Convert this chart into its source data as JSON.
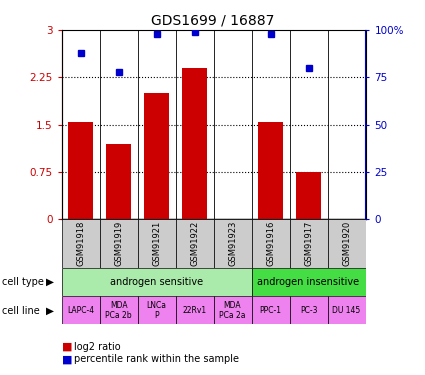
{
  "title": "GDS1699 / 16887",
  "samples": [
    "GSM91918",
    "GSM91919",
    "GSM91921",
    "GSM91922",
    "GSM91923",
    "GSM91916",
    "GSM91917",
    "GSM91920"
  ],
  "log2_ratio": [
    1.55,
    1.2,
    2.0,
    2.4,
    0.0,
    1.55,
    0.75,
    0.0
  ],
  "percentile_rank": [
    88,
    78,
    98,
    99,
    0,
    98,
    80,
    0
  ],
  "ylim_left": [
    0,
    3
  ],
  "ylim_right": [
    0,
    100
  ],
  "yticks_left": [
    0,
    0.75,
    1.5,
    2.25,
    3
  ],
  "ytick_labels_left": [
    "0",
    "0.75",
    "1.5",
    "2.25",
    "3"
  ],
  "yticks_right": [
    0,
    25,
    50,
    75,
    100
  ],
  "ytick_labels_right": [
    "0",
    "25",
    "50",
    "75",
    "100%"
  ],
  "cell_type_groups": [
    {
      "label": "androgen sensitive",
      "start": 0,
      "end": 5,
      "color": "#aaeaaa"
    },
    {
      "label": "androgen insensitive",
      "start": 5,
      "end": 8,
      "color": "#44dd44"
    }
  ],
  "cell_lines": [
    "LAPC-4",
    "MDA\nPCa 2b",
    "LNCa\nP",
    "22Rv1",
    "MDA\nPCa 2a",
    "PPC-1",
    "PC-3",
    "DU 145"
  ],
  "cell_line_color": "#ee82ee",
  "bar_color": "#cc0000",
  "dot_color": "#0000cc",
  "axis_color_left": "#cc0000",
  "axis_color_right": "#0000cc",
  "sample_box_color": "#cccccc",
  "legend_red_label": "log2 ratio",
  "legend_blue_label": "percentile rank within the sample",
  "gridline_vals": [
    0.75,
    1.5,
    2.25
  ]
}
